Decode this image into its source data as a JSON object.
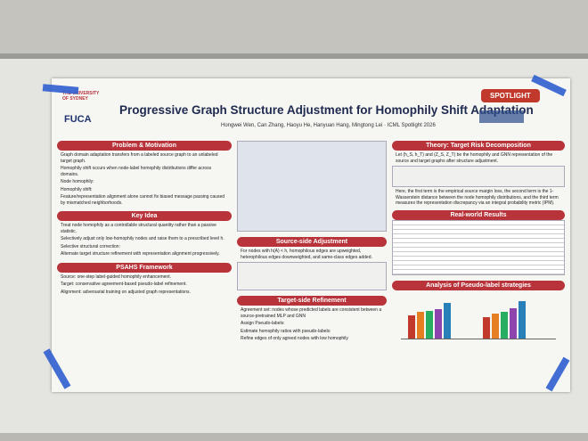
{
  "header": {
    "badge": "SPOTLIGHT",
    "university": "THE UNIVERSITY OF SYDNEY",
    "lab": "FUCA",
    "title": "Progressive Graph Structure Adjustment for Homophily Shift Adaptation",
    "authors": "Hongwei Wen, Can Zhang, Haoyu He, Hanyuan Hang, Mingtong Lei · ICML Spotlight 2026"
  },
  "sections": [
    {
      "title": "Problem & Motivation",
      "items": [
        "Graph domain adaptation transfers from a labeled source graph to an unlabeled target graph.",
        "Homophily shift occurs when node-label homophily distributions differ across domains.",
        "Node homophily:",
        "Homophily shift:",
        "Feature/representation alignment alone cannot fix biased message passing caused by mismatched neighborhoods."
      ]
    },
    {
      "title": "Key Idea",
      "items": [
        "Treat node homophily as a controllable structural quantity rather than a passive statistic.",
        "Selectively adjust only low-homophily nodes and raise them to a prescribed level h.",
        "Selective structural correction:",
        "Alternate target structure refinement with representation alignment progressively."
      ]
    },
    {
      "title": "PSAHS Framework",
      "items": [
        "Source: one-step label-guided homophily enhancement.",
        "Target: conservative agreement-based pseudo-label refinement.",
        "Alignment: adversarial training on adjusted graph representations."
      ]
    },
    {
      "title": "Source-side Adjustment",
      "items": [
        "For nodes with h(A) < h, homophilous edges are upweighted, heterophilous edges downweighted, and same-class edges added."
      ]
    },
    {
      "title": "Target-side Refinement",
      "items": [
        "Agreement set: nodes whose predicted labels are consistent between a source-pretrained MLP and GNN",
        "Assign Pseudo-labels:",
        "Estimate homophily ratios with pseudo-labels:",
        "Refine edges of only agreed nodes with low homophily"
      ]
    },
    {
      "title": "Theory: Target Risk Decomposition",
      "items": [
        "Let (h_S, h_T) and (Z_S, Z_T) be the homophily and GNN representation of the source and target graphs after structure adjustment.",
        "Here, the first term is the empirical source margin loss, the second term is the 1-Wasserstein distance between the node homophily distributions, and the third term measures the representation discrepancy via an integral probability metric (IPM)."
      ]
    },
    {
      "title": "Real-world Results",
      "items": []
    },
    {
      "title": "Analysis of Pseudo-label strategies",
      "items": []
    }
  ]
}
